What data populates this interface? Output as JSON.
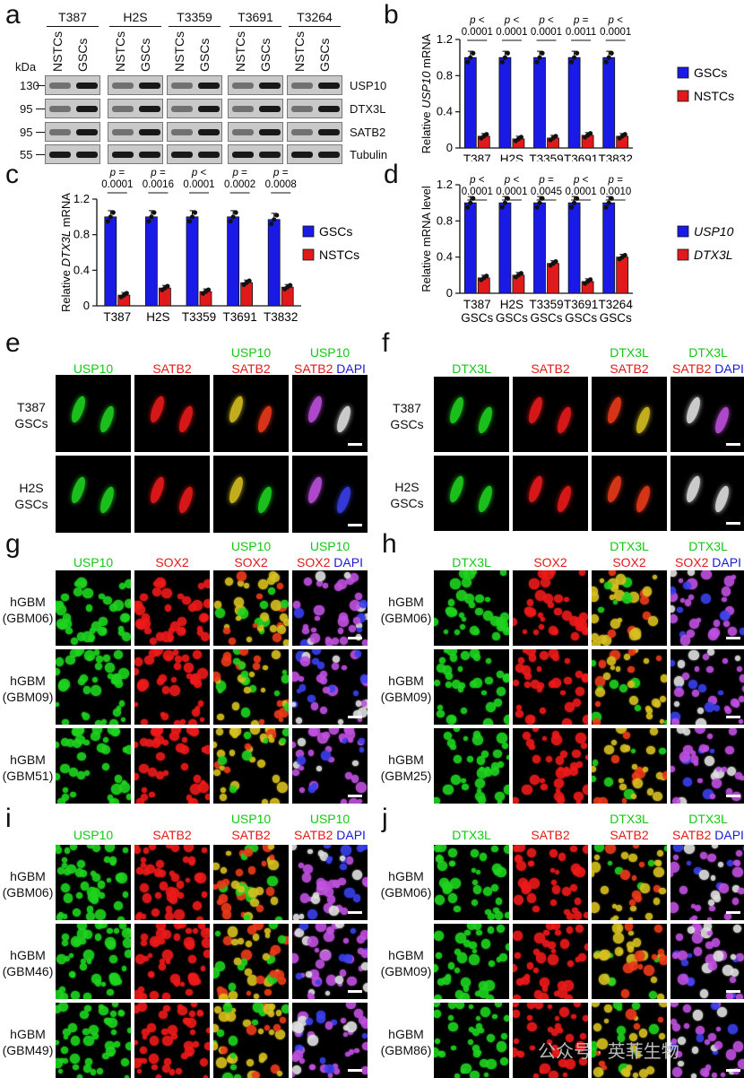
{
  "panel_labels": [
    "a",
    "b",
    "c",
    "d",
    "e",
    "f",
    "g",
    "h",
    "i",
    "j"
  ],
  "panel_a": {
    "cell_lines": [
      "T387",
      "H2S",
      "T3359",
      "T3691",
      "T3264"
    ],
    "lane_labels": [
      "NSTCs",
      "GSCs"
    ],
    "kda_label": "kDa",
    "markers": [
      "130",
      "95",
      "95",
      "55"
    ],
    "proteins": [
      "USP10",
      "DTX3L",
      "SATB2",
      "Tubulin"
    ]
  },
  "chart_data": [
    {
      "panel": "b",
      "type": "bar",
      "categories": [
        "T387",
        "H2S",
        "T3359",
        "T3691",
        "T3832"
      ],
      "series": [
        {
          "name": "GSCs",
          "color": "#1a1ae6",
          "values": [
            1.0,
            1.0,
            1.0,
            1.0,
            1.0
          ]
        },
        {
          "name": "NSTCs",
          "color": "#e01a1a",
          "values": [
            0.13,
            0.1,
            0.11,
            0.14,
            0.13
          ]
        }
      ],
      "pvalues": [
        "p <\n0.0001",
        "p <\n0.0001",
        "p <\n0.0001",
        "p =\n0.0011",
        "p <\n0.0001"
      ],
      "ylabel": "Relative USP10 mRNA",
      "ylabel_plain": "Relative ",
      "ylabel_italic": "USP10",
      "ylabel_tail": " mRNA",
      "ylim": [
        0,
        1.2
      ],
      "yticks": [
        "0",
        "0.4",
        "0.8",
        "1.2"
      ],
      "legend": [
        "GSCs",
        "NSTCs"
      ]
    },
    {
      "panel": "c",
      "type": "bar",
      "categories": [
        "T387",
        "H2S",
        "T3359",
        "T3691",
        "T3832"
      ],
      "series": [
        {
          "name": "GSCs",
          "color": "#1a1ae6",
          "values": [
            1.0,
            1.0,
            1.0,
            1.0,
            0.97
          ]
        },
        {
          "name": "NSTCs",
          "color": "#e01a1a",
          "values": [
            0.12,
            0.2,
            0.16,
            0.26,
            0.21
          ]
        }
      ],
      "pvalues": [
        "p =\n0.0001",
        "p =\n0.0016",
        "p <\n0.0001",
        "p =\n0.0002",
        "p =\n0.0008"
      ],
      "ylabel_plain": "Relative ",
      "ylabel_italic": "DTX3L",
      "ylabel_tail": " mRNA",
      "ylim": [
        0,
        1.2
      ],
      "yticks": [
        "0",
        "0.4",
        "0.8",
        "1.2"
      ],
      "legend": [
        "GSCs",
        "NSTCs"
      ]
    },
    {
      "panel": "d",
      "type": "bar",
      "categories": [
        "T387\nGSCs",
        "H2S\nGSCs",
        "T3359\nGSCs",
        "T3691\nGSCs",
        "T3264\nGSCs"
      ],
      "series": [
        {
          "name": "USP10",
          "color": "#1a1ae6",
          "values": [
            1.0,
            1.0,
            1.0,
            1.0,
            1.0
          ]
        },
        {
          "name": "DTX3L",
          "color": "#e01a1a",
          "values": [
            0.17,
            0.2,
            0.33,
            0.13,
            0.4
          ]
        }
      ],
      "pvalues": [
        "p <\n0.0001",
        "p <\n0.0001",
        "p =\n0.0045",
        "p <\n0.0001",
        "p =\n0.0010"
      ],
      "ylabel_plain": "Relative mRNA level",
      "ylabel_italic": "",
      "ylabel_tail": "",
      "ylim": [
        0,
        1.2
      ],
      "yticks": [
        "0",
        "0.4",
        "0.8",
        "1.2"
      ],
      "legend": [
        "USP10",
        "DTX3L"
      ]
    }
  ],
  "panel_e": {
    "headers": [
      [
        "USP10"
      ],
      [
        "SATB2"
      ],
      [
        "USP10",
        "SATB2"
      ],
      [
        "USP10",
        "SATB2",
        "DAPI"
      ]
    ],
    "rows": [
      "T387\nGSCs",
      "H2S\nGSCs"
    ]
  },
  "panel_f": {
    "headers": [
      [
        "DTX3L"
      ],
      [
        "SATB2"
      ],
      [
        "DTX3L",
        "SATB2"
      ],
      [
        "DTX3L",
        "SATB2",
        "DAPI"
      ]
    ],
    "rows": [
      "T387\nGSCs",
      "H2S\nGSCs"
    ]
  },
  "panel_g": {
    "headers": [
      [
        "USP10"
      ],
      [
        "SOX2"
      ],
      [
        "USP10",
        "SOX2"
      ],
      [
        "USP10",
        "SOX2",
        "DAPI"
      ]
    ],
    "rows": [
      "hGBM\n(GBM06)",
      "hGBM\n(GBM09)",
      "hGBM\n(GBM51)"
    ]
  },
  "panel_h": {
    "headers": [
      [
        "DTX3L"
      ],
      [
        "SOX2"
      ],
      [
        "DTX3L",
        "SOX2"
      ],
      [
        "DTX3L",
        "SOX2",
        "DAPI"
      ]
    ],
    "rows": [
      "hGBM\n(GBM06)",
      "hGBM\n(GBM09)",
      "hGBM\n(GBM25)"
    ]
  },
  "panel_i": {
    "headers": [
      [
        "USP10"
      ],
      [
        "SATB2"
      ],
      [
        "USP10",
        "SATB2"
      ],
      [
        "USP10",
        "SATB2",
        "DAPI"
      ]
    ],
    "rows": [
      "hGBM\n(GBM06)",
      "hGBM\n(GBM46)",
      "hGBM\n(GBM49)"
    ]
  },
  "panel_j": {
    "headers": [
      [
        "DTX3L"
      ],
      [
        "SATB2"
      ],
      [
        "DTX3L",
        "SATB2"
      ],
      [
        "DTX3L",
        "SATB2",
        "DAPI"
      ]
    ],
    "rows": [
      "hGBM\n(GBM06)",
      "hGBM\n(GBM09)",
      "hGBM\n(GBM86)"
    ]
  },
  "watermark": "公众号 · 英菲生物",
  "colors": {
    "green": "#14c814",
    "red": "#e01a1a",
    "blue": "#1a1ad8"
  }
}
